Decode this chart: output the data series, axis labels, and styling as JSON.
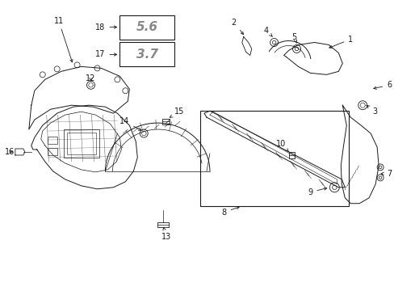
{
  "bg_color": "#ffffff",
  "line_color": "#1a1a1a",
  "gray_color": "#888888",
  "figsize": [
    4.89,
    3.6
  ],
  "dpi": 100,
  "label_fs": 7.0,
  "badge_fs": 11.0
}
